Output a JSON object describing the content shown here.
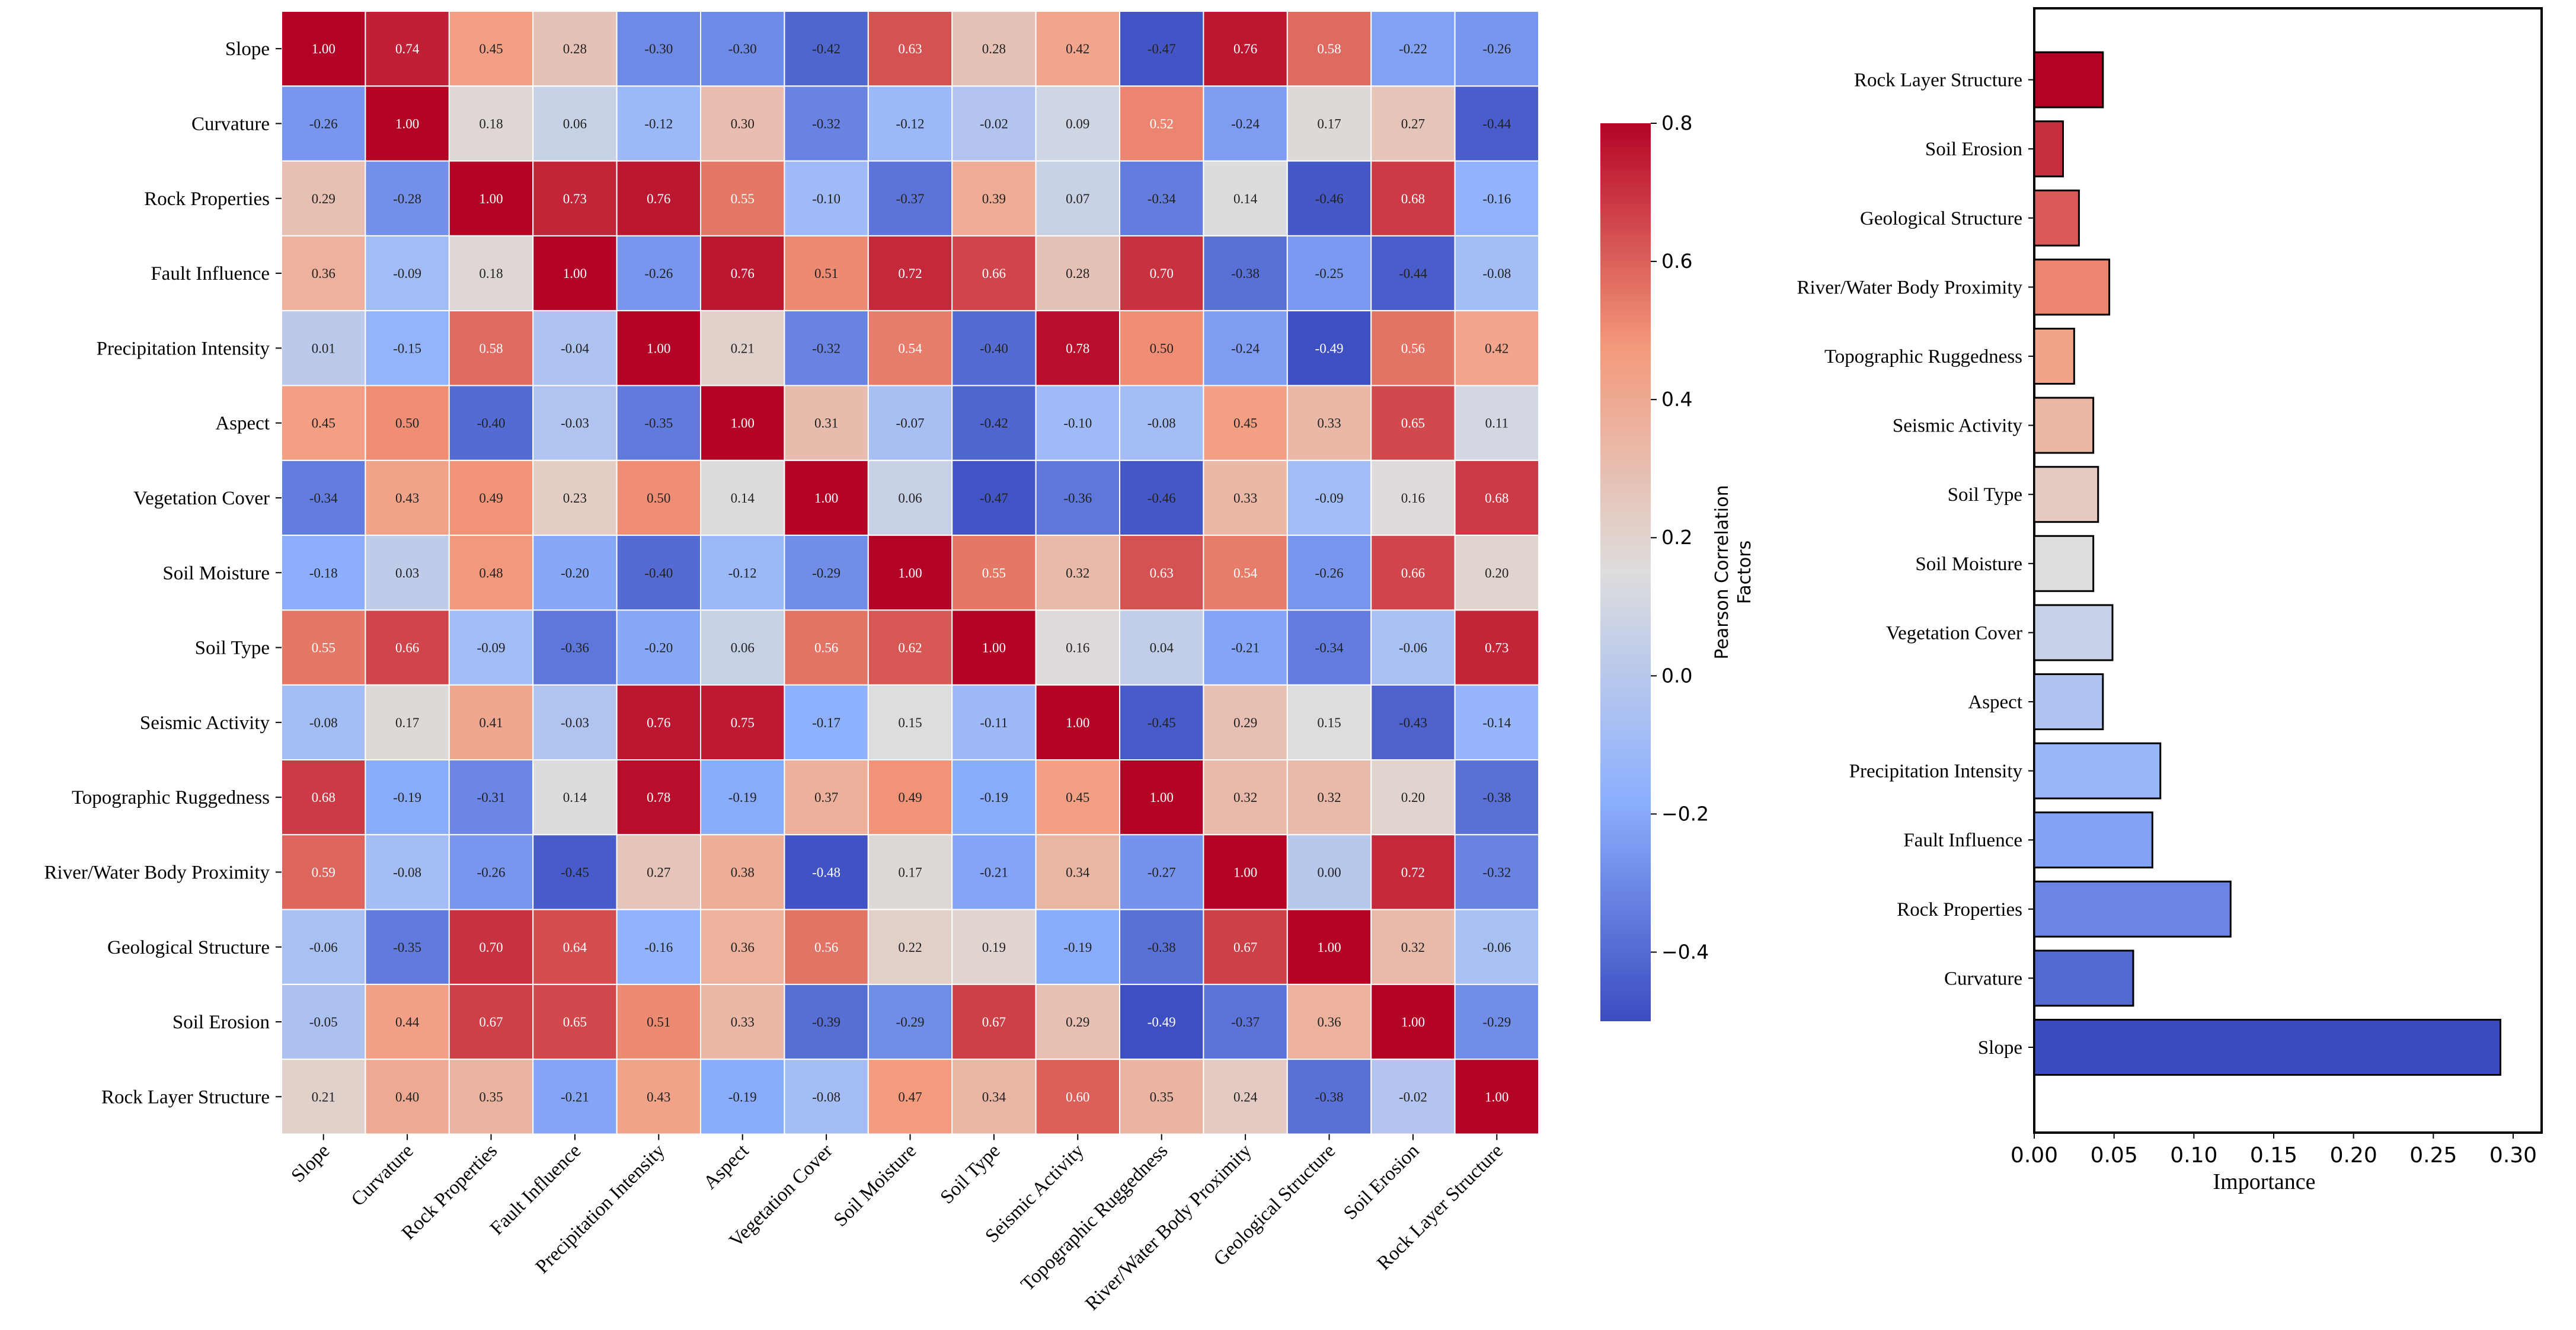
{
  "chart_data": [
    {
      "type": "heatmap",
      "title": "",
      "labels": [
        "Slope",
        "Curvature",
        "Rock Properties",
        "Fault Influence",
        "Precipitation Intensity",
        "Aspect",
        "Vegetation Cover",
        "Soil Moisture",
        "Soil Type",
        "Seismic Activity",
        "Topographic Ruggedness",
        "River/Water Body Proximity",
        "Geological Structure",
        "Soil Erosion",
        "Rock Layer Structure"
      ],
      "values": [
        [
          1.0,
          0.74,
          0.45,
          0.28,
          -0.3,
          -0.3,
          -0.42,
          0.63,
          0.28,
          0.42,
          -0.47,
          0.76,
          0.58,
          -0.22,
          -0.26
        ],
        [
          -0.26,
          1.0,
          0.18,
          0.06,
          -0.12,
          0.3,
          -0.32,
          -0.12,
          -0.02,
          0.09,
          0.52,
          -0.24,
          0.17,
          0.27,
          -0.44
        ],
        [
          0.29,
          -0.28,
          1.0,
          0.73,
          0.76,
          0.55,
          -0.1,
          -0.37,
          0.39,
          0.07,
          -0.34,
          0.14,
          -0.46,
          0.68,
          -0.16
        ],
        [
          0.36,
          -0.09,
          0.18,
          1.0,
          -0.26,
          0.76,
          0.51,
          0.72,
          0.66,
          0.28,
          0.7,
          -0.38,
          -0.25,
          -0.44,
          -0.08
        ],
        [
          0.01,
          -0.15,
          0.58,
          -0.04,
          1.0,
          0.21,
          -0.32,
          0.54,
          -0.4,
          0.78,
          0.5,
          -0.24,
          -0.49,
          0.56,
          0.42
        ],
        [
          0.45,
          0.5,
          -0.4,
          -0.03,
          -0.35,
          1.0,
          0.31,
          -0.07,
          -0.42,
          -0.1,
          -0.08,
          0.45,
          0.33,
          0.65,
          0.11
        ],
        [
          -0.34,
          0.43,
          0.49,
          0.23,
          0.5,
          0.14,
          1.0,
          0.06,
          -0.47,
          -0.36,
          -0.46,
          0.33,
          -0.09,
          0.16,
          0.68
        ],
        [
          -0.18,
          0.03,
          0.48,
          -0.2,
          -0.4,
          -0.12,
          -0.29,
          1.0,
          0.55,
          0.32,
          0.63,
          0.54,
          -0.26,
          0.66,
          0.2
        ],
        [
          0.55,
          0.66,
          -0.09,
          -0.36,
          -0.2,
          0.06,
          0.56,
          0.62,
          1.0,
          0.16,
          0.04,
          -0.21,
          -0.34,
          -0.06,
          0.73
        ],
        [
          -0.08,
          0.17,
          0.41,
          -0.03,
          0.76,
          0.75,
          -0.17,
          0.15,
          -0.11,
          1.0,
          -0.45,
          0.29,
          0.15,
          -0.43,
          -0.14
        ],
        [
          0.68,
          -0.19,
          -0.31,
          0.14,
          0.78,
          -0.19,
          0.37,
          0.49,
          -0.19,
          0.45,
          1.0,
          0.32,
          0.32,
          0.2,
          -0.38
        ],
        [
          0.59,
          -0.08,
          -0.26,
          -0.45,
          0.27,
          0.38,
          -0.48,
          0.17,
          -0.21,
          0.34,
          -0.27,
          1.0,
          0.0,
          0.72,
          -0.32
        ],
        [
          -0.06,
          -0.35,
          0.7,
          0.64,
          -0.16,
          0.36,
          0.56,
          0.22,
          0.19,
          -0.19,
          -0.38,
          0.67,
          1.0,
          0.32,
          -0.06
        ],
        [
          -0.05,
          0.44,
          0.67,
          0.65,
          0.51,
          0.33,
          -0.39,
          -0.29,
          0.67,
          0.29,
          -0.49,
          -0.37,
          0.36,
          1.0,
          -0.29
        ],
        [
          0.21,
          0.4,
          0.35,
          -0.21,
          0.43,
          -0.19,
          -0.08,
          0.47,
          0.34,
          0.6,
          0.35,
          0.24,
          -0.38,
          -0.02,
          1.0
        ]
      ],
      "colormap": "coolwarm",
      "colorbar": {
        "label": "Pearson Correlation Factors",
        "range": [
          -0.5,
          0.8
        ],
        "ticks": [
          0.8,
          0.6,
          0.4,
          0.2,
          0.0,
          -0.2,
          -0.4
        ],
        "tick_labels": [
          "0.8",
          "0.6",
          "0.4",
          "0.2",
          "0.0",
          "−0.2",
          "−0.4"
        ]
      }
    },
    {
      "type": "bar",
      "orientation": "horizontal",
      "categories": [
        "Slope",
        "Curvature",
        "Rock Properties",
        "Fault Influence",
        "Precipitation Intensity",
        "Aspect",
        "Vegetation Cover",
        "Soil Moisture",
        "Soil Type",
        "Seismic Activity",
        "Topographic Ruggedness",
        "River/Water Body Proximity",
        "Geological Structure",
        "Soil Erosion",
        "Rock Layer Structure"
      ],
      "values": [
        0.292,
        0.062,
        0.123,
        0.074,
        0.079,
        0.043,
        0.049,
        0.037,
        0.04,
        0.037,
        0.025,
        0.047,
        0.028,
        0.018,
        0.043
      ],
      "xlabel": "Importance",
      "ylabel": "",
      "xlim": [
        0,
        0.305
      ],
      "xticks": [
        0.0,
        0.05,
        0.1,
        0.15,
        0.2,
        0.25,
        0.3
      ],
      "xtick_labels": [
        "0.00",
        "0.05",
        "0.10",
        "0.15",
        "0.20",
        "0.25",
        "0.30"
      ],
      "colormap": "coolwarm"
    }
  ]
}
